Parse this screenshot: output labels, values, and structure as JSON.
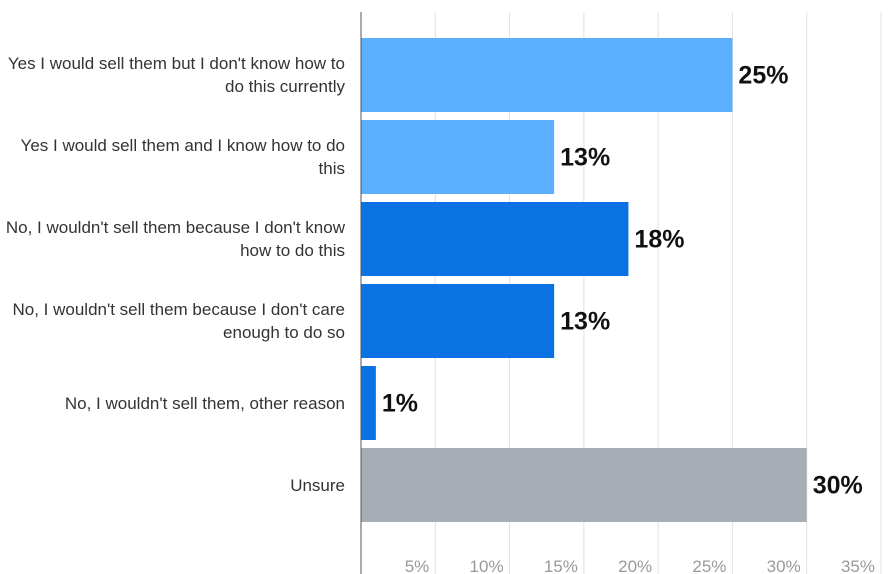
{
  "chart_data": {
    "type": "bar",
    "orientation": "horizontal",
    "categories": [
      "Yes I would sell them but I don't know how to do this currently",
      "Yes I would sell them and I know how to do this",
      "No, I wouldn't sell them because I don't know how to do this",
      "No, I wouldn't sell them because I don't care enough to do so",
      "No, I wouldn't sell them, other reason",
      "Unsure"
    ],
    "values": [
      25,
      13,
      18,
      13,
      1,
      30
    ],
    "value_labels": [
      "25%",
      "13%",
      "18%",
      "13%",
      "1%",
      "30%"
    ],
    "colors": [
      "#5cb0ff",
      "#5cb0ff",
      "#0a72e3",
      "#0a72e3",
      "#0a72e3",
      "#a6adb5"
    ],
    "xlim": [
      0,
      35
    ],
    "xticks": [
      {
        "value": 5,
        "label": "5%"
      },
      {
        "value": 10,
        "label": "10%"
      },
      {
        "value": 15,
        "label": "15%"
      },
      {
        "value": 20,
        "label": "20%"
      },
      {
        "value": 25,
        "label": "25%"
      },
      {
        "value": 30,
        "label": "30%"
      },
      {
        "value": 35,
        "label": "35%"
      }
    ],
    "grid": true
  }
}
